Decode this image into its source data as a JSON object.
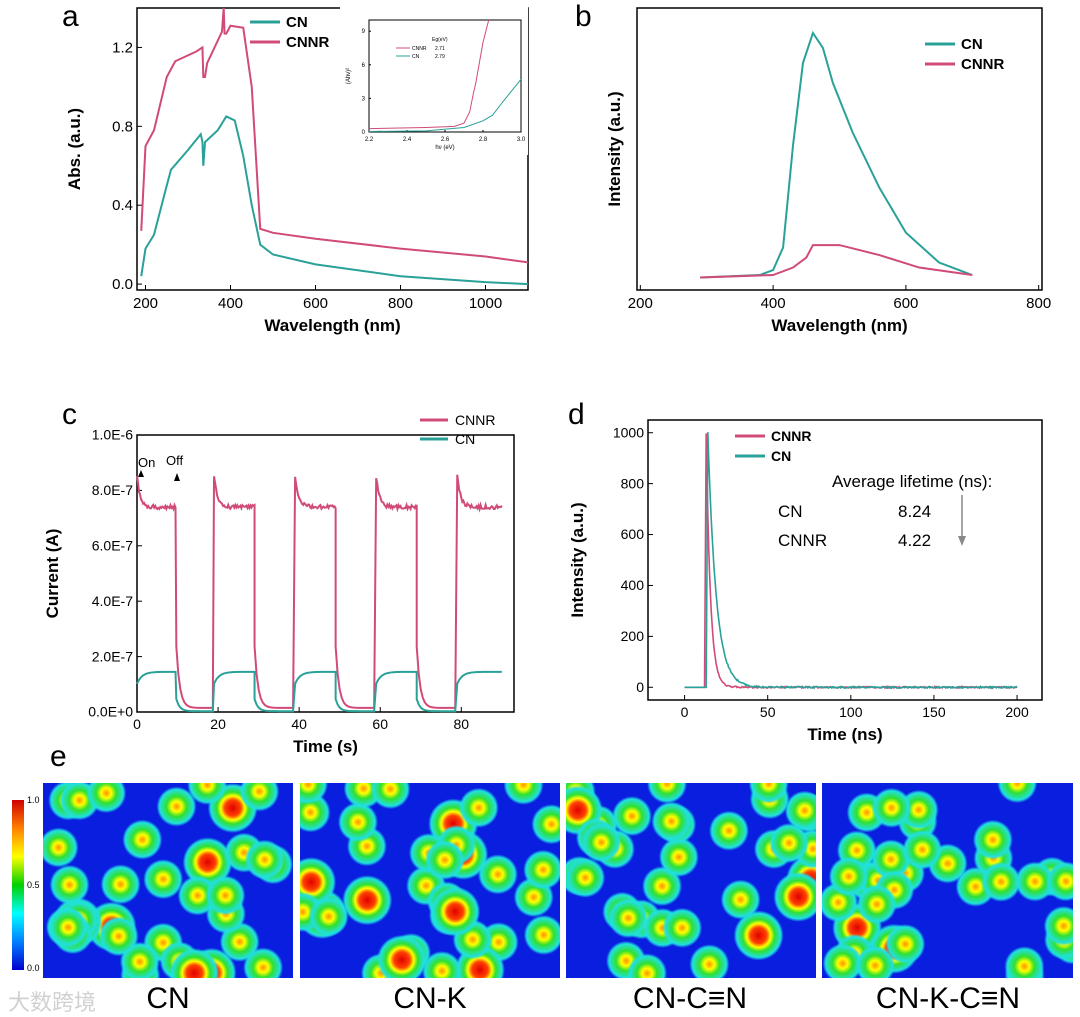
{
  "panels": {
    "a": "a",
    "b": "b",
    "c": "c",
    "d": "d",
    "e": "e"
  },
  "colors": {
    "cn": "#2aa198",
    "cnnr": "#d14b78"
  },
  "chart_data": [
    {
      "id": "a",
      "type": "line",
      "xlabel": "Wavelength (nm)",
      "ylabel": "Abs. (a.u.)",
      "xlim": [
        180,
        1100
      ],
      "ylim": [
        -0.03,
        1.4
      ],
      "xticks": [
        200,
        400,
        600,
        800,
        1000
      ],
      "yticks": [
        0.0,
        0.4,
        0.8,
        1.2
      ],
      "ytick_labels": [
        "0.0",
        "0.4",
        "0.8",
        "1.2"
      ],
      "legend": "top-left",
      "series": [
        {
          "name": "CN",
          "color": "#2aa198",
          "x": [
            190,
            200,
            220,
            250,
            260,
            300,
            330,
            334,
            336,
            340,
            370,
            390,
            410,
            430,
            450,
            470,
            500,
            600,
            800,
            1000,
            1100
          ],
          "y": [
            0.04,
            0.18,
            0.25,
            0.5,
            0.58,
            0.68,
            0.76,
            0.72,
            0.6,
            0.72,
            0.78,
            0.85,
            0.83,
            0.65,
            0.4,
            0.2,
            0.15,
            0.1,
            0.04,
            0.01,
            0.0
          ]
        },
        {
          "name": "CNNR",
          "color": "#d14b78",
          "x": [
            190,
            200,
            220,
            250,
            270,
            320,
            334,
            336,
            340,
            345,
            380,
            384,
            386,
            390,
            400,
            430,
            450,
            470,
            500,
            600,
            800,
            1000,
            1100
          ],
          "y": [
            0.27,
            0.7,
            0.78,
            1.05,
            1.13,
            1.18,
            1.2,
            1.05,
            1.05,
            1.12,
            1.28,
            1.4,
            1.27,
            1.27,
            1.31,
            1.3,
            1.0,
            0.28,
            0.26,
            0.23,
            0.18,
            0.14,
            0.11
          ]
        }
      ],
      "inset": {
        "xlabel": "hν (eV)",
        "ylabel": "(Ahν)²",
        "xlim": [
          2.2,
          3.0
        ],
        "ylim": [
          0,
          10
        ],
        "xticks": [
          2.2,
          2.4,
          2.6,
          2.8,
          3.0
        ],
        "xtick_labels": [
          "2.2",
          "2.4",
          "2.6",
          "2.8",
          "3.0"
        ],
        "yticks": [
          0,
          3,
          6,
          9
        ],
        "legend_title": "Eg(eV)",
        "series": [
          {
            "name": "CNNR",
            "value": "2.71",
            "color": "#d14b78",
            "x": [
              2.2,
              2.5,
              2.65,
              2.7,
              2.73,
              2.75,
              2.76,
              2.8,
              2.83
            ],
            "y": [
              0.3,
              0.4,
              0.5,
              0.8,
              1.8,
              3.5,
              4.2,
              8,
              10
            ]
          },
          {
            "name": "CN",
            "value": "2.79",
            "color": "#2aa198",
            "x": [
              2.2,
              2.5,
              2.7,
              2.8,
              2.85,
              2.9,
              3.0
            ],
            "y": [
              0.05,
              0.1,
              0.4,
              1,
              1.5,
              2.6,
              4.7
            ]
          }
        ]
      }
    },
    {
      "id": "b",
      "type": "line",
      "xlabel": "Wavelength (nm)",
      "ylabel": "Intensity (a.u.)",
      "xlim": [
        195,
        805
      ],
      "ylim": [
        -3,
        110
      ],
      "xticks": [
        200,
        400,
        600,
        800
      ],
      "yticks": [],
      "legend": "top-right",
      "series": [
        {
          "name": "CN",
          "color": "#2aa198",
          "x": [
            290,
            380,
            400,
            415,
            430,
            445,
            460,
            475,
            490,
            520,
            560,
            600,
            650,
            700
          ],
          "y": [
            2,
            3,
            5,
            14,
            55,
            88,
            100,
            94,
            80,
            60,
            38,
            20,
            8,
            3
          ]
        },
        {
          "name": "CNNR",
          "color": "#d14b78",
          "x": [
            290,
            400,
            430,
            450,
            460,
            480,
            500,
            530,
            560,
            620,
            700
          ],
          "y": [
            2,
            3,
            6,
            10,
            15,
            15,
            15,
            13,
            11,
            6,
            3
          ]
        }
      ]
    },
    {
      "id": "c",
      "type": "line",
      "xlabel": "Time (s)",
      "ylabel": "Current (A)",
      "xlim": [
        0,
        93
      ],
      "ylim": [
        0,
        1e-06
      ],
      "xticks": [
        0,
        20,
        40,
        60,
        80
      ],
      "yticks": [
        0,
        2e-07,
        4e-07,
        6e-07,
        8e-07,
        1e-06
      ],
      "ytick_labels": [
        "0.0E+0",
        "2.0E-7",
        "4.0E-7",
        "6.0E-7",
        "8.0E-7",
        "1.0E-6"
      ],
      "legend": "top-right",
      "annotations": [
        "On",
        "Off"
      ],
      "on_intervals": [
        [
          0,
          9.7
        ],
        [
          19,
          29
        ],
        [
          39,
          49
        ],
        [
          59,
          69
        ],
        [
          79,
          90
        ]
      ],
      "series": [
        {
          "name": "CNNR",
          "color": "#d14b78",
          "on_level": 7.4e-07,
          "spike": 8.5e-07
        },
        {
          "name": "CN",
          "color": "#2aa198",
          "on_level": 1.45e-07,
          "spike": 1e-07
        }
      ]
    },
    {
      "id": "d",
      "type": "line",
      "xlabel": "Time (ns)",
      "ylabel": "Intensity (a.u.)",
      "xlim": [
        -22,
        215
      ],
      "ylim": [
        -50,
        1050
      ],
      "xticks": [
        0,
        50,
        100,
        150,
        200
      ],
      "yticks": [
        0,
        200,
        400,
        600,
        800,
        1000
      ],
      "legend": "top-left",
      "table": {
        "title": "Average lifetime (ns):",
        "rows": [
          [
            "CN",
            "8.24"
          ],
          [
            "CNNR",
            "4.22"
          ]
        ]
      },
      "series": [
        {
          "name": "CNNR",
          "color": "#d14b78",
          "peak_time": 13,
          "lifetime": 4.22
        },
        {
          "name": "CN",
          "color": "#2aa198",
          "peak_time": 14,
          "lifetime": 8.24
        }
      ]
    }
  ],
  "maps": {
    "labels": [
      "CN",
      "CN-K",
      "CN-C≡N",
      "CN-K-C≡N"
    ],
    "colorbar": [
      "1.0",
      "0.5",
      "0.0"
    ]
  },
  "watermark": "大数跨境"
}
